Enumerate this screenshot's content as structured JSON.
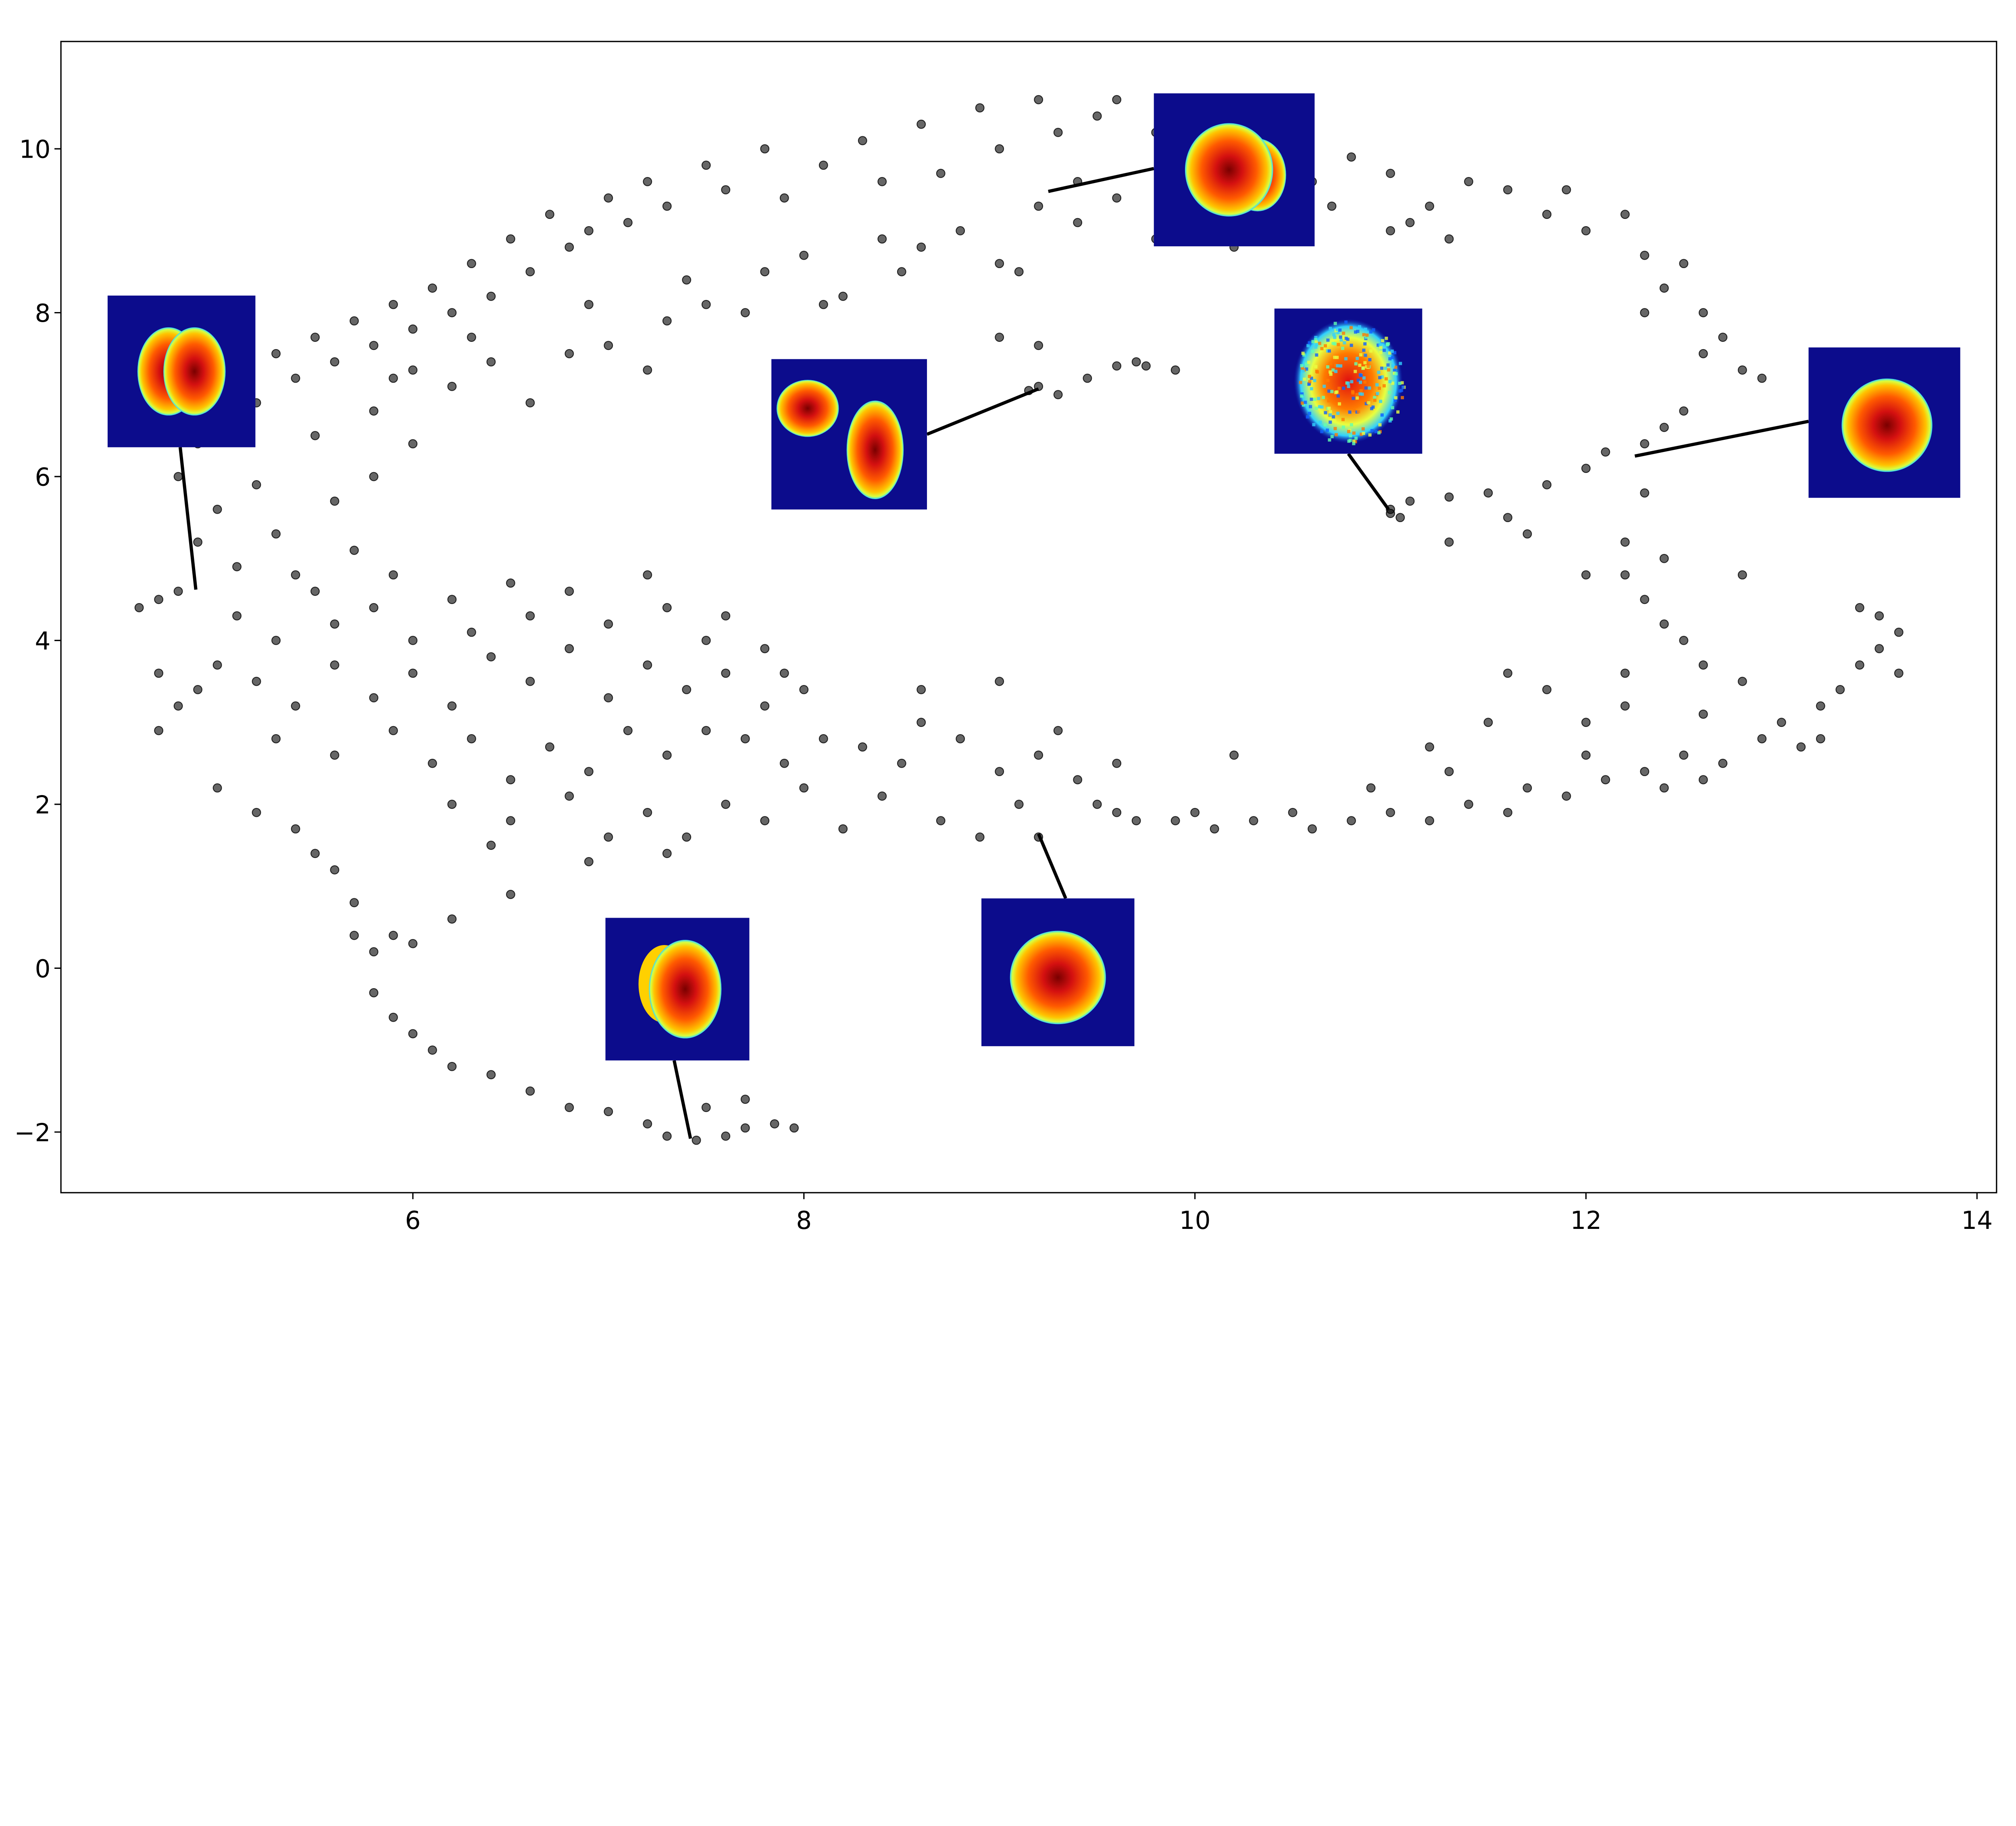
{
  "chart_data": {
    "type": "scatter",
    "title": "",
    "xlabel": "",
    "ylabel": "",
    "xlim": [
      4.2,
      14.1
    ],
    "ylim": [
      -2.74,
      11.31
    ],
    "grid": false,
    "legend": "none",
    "x_ticks": [
      {
        "value": 6,
        "label": "6"
      },
      {
        "value": 8,
        "label": "8"
      },
      {
        "value": 10,
        "label": "10"
      },
      {
        "value": 12,
        "label": "12"
      },
      {
        "value": 14,
        "label": "14"
      }
    ],
    "y_ticks": [
      {
        "value": -2,
        "label": "−2"
      },
      {
        "value": 0,
        "label": "0"
      },
      {
        "value": 2,
        "label": "2"
      },
      {
        "value": 4,
        "label": "4"
      },
      {
        "value": 6,
        "label": "6"
      },
      {
        "value": 8,
        "label": "8"
      },
      {
        "value": 10,
        "label": "10"
      }
    ],
    "marker_color": "#000000",
    "marker_alpha": 0.6,
    "inset_colormap": "jet",
    "annotations": [
      {
        "target": [
          4.89,
          4.62
        ],
        "image": "split-blob"
      },
      {
        "target": [
          9.2,
          7.07
        ],
        "image": "two-blobs"
      },
      {
        "target": [
          9.25,
          9.48
        ],
        "image": "double-blob"
      },
      {
        "target": [
          10.99,
          5.6
        ],
        "image": "noisy-blob"
      },
      {
        "target": [
          12.25,
          6.25
        ],
        "image": "oval-blob"
      },
      {
        "target": [
          9.2,
          1.64
        ],
        "image": "round-blob"
      },
      {
        "target": [
          7.42,
          -2.08
        ],
        "image": "crescent-blob"
      }
    ],
    "points": [
      [
        5.0,
        7.0
      ],
      [
        5.1,
        7.3
      ],
      [
        5.2,
        6.9
      ],
      [
        5.3,
        7.5
      ],
      [
        5.4,
        7.2
      ],
      [
        5.5,
        7.7
      ],
      [
        5.6,
        7.4
      ],
      [
        5.7,
        7.9
      ],
      [
        5.8,
        7.6
      ],
      [
        5.9,
        8.1
      ],
      [
        6.0,
        7.8
      ],
      [
        6.1,
        8.3
      ],
      [
        6.2,
        8.0
      ],
      [
        6.3,
        8.6
      ],
      [
        6.4,
        8.2
      ],
      [
        6.5,
        8.9
      ],
      [
        6.6,
        8.5
      ],
      [
        6.7,
        9.2
      ],
      [
        6.8,
        8.8
      ],
      [
        6.9,
        9.0
      ],
      [
        7.0,
        9.4
      ],
      [
        7.1,
        9.1
      ],
      [
        7.2,
        9.6
      ],
      [
        7.3,
        9.3
      ],
      [
        7.5,
        9.8
      ],
      [
        7.6,
        9.5
      ],
      [
        7.8,
        10.0
      ],
      [
        7.9,
        9.4
      ],
      [
        8.1,
        9.8
      ],
      [
        8.3,
        10.1
      ],
      [
        8.4,
        9.6
      ],
      [
        8.6,
        10.3
      ],
      [
        8.7,
        9.7
      ],
      [
        8.9,
        10.5
      ],
      [
        9.0,
        10.0
      ],
      [
        9.2,
        10.6
      ],
      [
        9.3,
        10.2
      ],
      [
        9.5,
        10.4
      ],
      [
        9.4,
        9.6
      ],
      [
        9.6,
        10.6
      ],
      [
        9.8,
        10.2
      ],
      [
        10.5,
        10.2
      ],
      [
        10.6,
        9.6
      ],
      [
        10.8,
        9.9
      ],
      [
        11.0,
        9.7
      ],
      [
        11.2,
        9.3
      ],
      [
        11.4,
        9.6
      ],
      [
        11.6,
        9.5
      ],
      [
        11.8,
        9.2
      ],
      [
        11.9,
        9.5
      ],
      [
        12.0,
        9.0
      ],
      [
        12.2,
        9.2
      ],
      [
        12.3,
        8.7
      ],
      [
        12.4,
        8.3
      ],
      [
        12.5,
        8.6
      ],
      [
        12.6,
        8.0
      ],
      [
        12.7,
        7.7
      ],
      [
        12.8,
        7.3
      ],
      [
        12.9,
        7.2
      ],
      [
        12.6,
        7.5
      ],
      [
        12.3,
        8.0
      ],
      [
        5.5,
        6.5
      ],
      [
        5.8,
        6.8
      ],
      [
        6.0,
        7.3
      ],
      [
        6.2,
        7.1
      ],
      [
        6.4,
        7.4
      ],
      [
        6.6,
        6.9
      ],
      [
        6.8,
        7.5
      ],
      [
        7.0,
        7.6
      ],
      [
        7.2,
        7.3
      ],
      [
        7.3,
        7.9
      ],
      [
        7.5,
        8.1
      ],
      [
        7.7,
        8.0
      ],
      [
        7.8,
        8.5
      ],
      [
        8.0,
        8.7
      ],
      [
        8.2,
        8.2
      ],
      [
        8.4,
        8.9
      ],
      [
        8.6,
        8.8
      ],
      [
        8.8,
        9.0
      ],
      [
        9.0,
        8.6
      ],
      [
        9.2,
        9.3
      ],
      [
        9.4,
        9.1
      ],
      [
        9.6,
        9.4
      ],
      [
        9.8,
        8.9
      ],
      [
        10.0,
        9.1
      ],
      [
        10.3,
        9.4
      ],
      [
        10.5,
        9.0
      ],
      [
        10.7,
        9.3
      ],
      [
        11.0,
        9.0
      ],
      [
        11.3,
        8.9
      ],
      [
        8.1,
        8.1
      ],
      [
        8.5,
        8.5
      ],
      [
        9.1,
        8.5
      ],
      [
        6.9,
        8.1
      ],
      [
        7.4,
        8.4
      ],
      [
        6.3,
        7.7
      ],
      [
        5.9,
        7.2
      ],
      [
        10.2,
        8.8
      ],
      [
        11.1,
        9.1
      ],
      [
        4.7,
        6.7
      ],
      [
        4.9,
        6.4
      ],
      [
        4.8,
        6.0
      ],
      [
        5.0,
        5.6
      ],
      [
        5.2,
        5.9
      ],
      [
        4.9,
        5.2
      ],
      [
        5.3,
        5.3
      ],
      [
        5.6,
        5.7
      ],
      [
        5.4,
        4.8
      ],
      [
        5.1,
        4.9
      ],
      [
        5.7,
        5.1
      ],
      [
        5.8,
        6.0
      ],
      [
        6.0,
        6.4
      ],
      [
        4.8,
        4.6
      ],
      [
        4.6,
        4.4
      ],
      [
        4.7,
        4.5
      ],
      [
        9.15,
        7.05
      ],
      [
        9.2,
        7.1
      ],
      [
        9.3,
        7.0
      ],
      [
        9.45,
        7.2
      ],
      [
        9.6,
        7.35
      ],
      [
        9.7,
        7.4
      ],
      [
        9.75,
        7.35
      ],
      [
        9.9,
        7.3
      ],
      [
        9.0,
        7.7
      ],
      [
        9.2,
        7.6
      ],
      [
        11.0,
        5.55
      ],
      [
        11.0,
        5.6
      ],
      [
        11.05,
        5.5
      ],
      [
        11.1,
        5.7
      ],
      [
        11.3,
        5.75
      ],
      [
        11.5,
        5.8
      ],
      [
        11.6,
        5.5
      ],
      [
        11.8,
        5.9
      ],
      [
        12.0,
        6.1
      ],
      [
        12.1,
        6.3
      ],
      [
        12.3,
        6.4
      ],
      [
        12.4,
        6.6
      ],
      [
        12.5,
        6.8
      ],
      [
        12.2,
        5.2
      ],
      [
        12.3,
        5.8
      ],
      [
        12.4,
        5.0
      ],
      [
        12.3,
        4.5
      ],
      [
        12.4,
        4.2
      ],
      [
        12.2,
        4.8
      ],
      [
        12.5,
        4.0
      ],
      [
        12.6,
        3.7
      ],
      [
        12.2,
        3.6
      ],
      [
        12.0,
        4.8
      ],
      [
        12.8,
        4.8
      ],
      [
        11.3,
        5.2
      ],
      [
        11.7,
        5.3
      ],
      [
        13.4,
        4.4
      ],
      [
        13.5,
        4.3
      ],
      [
        13.6,
        4.1
      ],
      [
        13.5,
        3.9
      ],
      [
        13.4,
        3.7
      ],
      [
        13.3,
        3.4
      ],
      [
        13.6,
        3.6
      ],
      [
        13.2,
        3.2
      ],
      [
        13.0,
        3.0
      ],
      [
        13.1,
        2.7
      ],
      [
        12.9,
        2.8
      ],
      [
        12.7,
        2.5
      ],
      [
        12.6,
        2.3
      ],
      [
        12.5,
        2.6
      ],
      [
        12.3,
        2.4
      ],
      [
        12.4,
        2.2
      ],
      [
        12.1,
        2.3
      ],
      [
        12.0,
        2.6
      ],
      [
        11.9,
        2.1
      ],
      [
        11.7,
        2.2
      ],
      [
        11.6,
        1.9
      ],
      [
        11.4,
        2.0
      ],
      [
        11.3,
        2.4
      ],
      [
        11.2,
        1.8
      ],
      [
        11.0,
        1.9
      ],
      [
        10.9,
        2.2
      ],
      [
        10.8,
        1.8
      ],
      [
        10.6,
        1.7
      ],
      [
        10.5,
        1.9
      ],
      [
        10.3,
        1.8
      ],
      [
        10.1,
        1.7
      ],
      [
        10.0,
        1.9
      ],
      [
        9.9,
        1.8
      ],
      [
        9.7,
        1.8
      ],
      [
        9.6,
        1.9
      ],
      [
        12.0,
        3.0
      ],
      [
        12.2,
        3.2
      ],
      [
        11.8,
        3.4
      ],
      [
        11.5,
        3.0
      ],
      [
        11.2,
        2.7
      ],
      [
        12.6,
        3.1
      ],
      [
        12.8,
        3.5
      ],
      [
        13.2,
        2.8
      ],
      [
        10.2,
        2.6
      ],
      [
        11.6,
        3.6
      ],
      [
        4.7,
        3.6
      ],
      [
        4.8,
        3.2
      ],
      [
        4.7,
        2.9
      ],
      [
        4.9,
        3.4
      ],
      [
        5.0,
        3.7
      ],
      [
        5.1,
        4.3
      ],
      [
        5.3,
        4.0
      ],
      [
        5.5,
        4.6
      ],
      [
        5.6,
        4.2
      ],
      [
        5.8,
        4.4
      ],
      [
        5.9,
        4.8
      ],
      [
        6.0,
        4.0
      ],
      [
        6.2,
        4.5
      ],
      [
        6.3,
        4.1
      ],
      [
        6.5,
        4.7
      ],
      [
        6.6,
        4.3
      ],
      [
        6.8,
        4.6
      ],
      [
        7.0,
        4.2
      ],
      [
        7.2,
        4.8
      ],
      [
        7.3,
        4.4
      ],
      [
        7.5,
        4.0
      ],
      [
        7.6,
        4.3
      ],
      [
        7.8,
        3.9
      ],
      [
        7.9,
        3.6
      ],
      [
        5.2,
        3.5
      ],
      [
        5.4,
        3.2
      ],
      [
        5.6,
        3.7
      ],
      [
        5.8,
        3.3
      ],
      [
        6.0,
        3.6
      ],
      [
        6.2,
        3.2
      ],
      [
        6.4,
        3.8
      ],
      [
        6.6,
        3.5
      ],
      [
        6.8,
        3.9
      ],
      [
        7.0,
        3.3
      ],
      [
        7.2,
        3.7
      ],
      [
        7.4,
        3.4
      ],
      [
        7.6,
        3.6
      ],
      [
        7.8,
        3.2
      ],
      [
        8.0,
        3.4
      ],
      [
        5.3,
        2.8
      ],
      [
        5.6,
        2.6
      ],
      [
        5.9,
        2.9
      ],
      [
        6.1,
        2.5
      ],
      [
        6.3,
        2.8
      ],
      [
        6.5,
        2.3
      ],
      [
        6.7,
        2.7
      ],
      [
        6.9,
        2.4
      ],
      [
        7.1,
        2.9
      ],
      [
        7.3,
        2.6
      ],
      [
        7.5,
        2.9
      ],
      [
        7.7,
        2.8
      ],
      [
        7.9,
        2.5
      ],
      [
        8.1,
        2.8
      ],
      [
        6.2,
        2.0
      ],
      [
        6.5,
        1.8
      ],
      [
        6.8,
        2.1
      ],
      [
        7.0,
        1.6
      ],
      [
        7.2,
        1.9
      ],
      [
        7.4,
        1.6
      ],
      [
        7.6,
        2.0
      ],
      [
        7.8,
        1.8
      ],
      [
        6.4,
        1.5
      ],
      [
        6.9,
        1.3
      ],
      [
        7.3,
        1.4
      ],
      [
        8.3,
        2.7
      ],
      [
        8.5,
        2.5
      ],
      [
        8.6,
        3.0
      ],
      [
        8.8,
        2.8
      ],
      [
        9.0,
        2.4
      ],
      [
        9.1,
        2.0
      ],
      [
        9.2,
        2.6
      ],
      [
        9.3,
        2.9
      ],
      [
        9.4,
        2.3
      ],
      [
        9.5,
        2.0
      ],
      [
        8.7,
        1.8
      ],
      [
        8.9,
        1.6
      ],
      [
        9.2,
        1.6
      ],
      [
        8.4,
        2.1
      ],
      [
        8.0,
        2.2
      ],
      [
        8.2,
        1.7
      ],
      [
        9.6,
        2.5
      ],
      [
        8.6,
        3.4
      ],
      [
        9.0,
        3.5
      ],
      [
        5.0,
        2.2
      ],
      [
        5.2,
        1.9
      ],
      [
        5.4,
        1.7
      ],
      [
        5.5,
        1.4
      ],
      [
        5.6,
        1.2
      ],
      [
        5.7,
        0.8
      ],
      [
        5.7,
        0.4
      ],
      [
        5.8,
        0.2
      ],
      [
        5.9,
        0.4
      ],
      [
        5.8,
        -0.3
      ],
      [
        5.9,
        -0.6
      ],
      [
        6.0,
        -0.8
      ],
      [
        6.1,
        -1.0
      ],
      [
        6.2,
        -1.2
      ],
      [
        6.4,
        -1.3
      ],
      [
        6.6,
        -1.5
      ],
      [
        6.8,
        -1.7
      ],
      [
        7.0,
        -1.75
      ],
      [
        7.2,
        -1.9
      ],
      [
        7.3,
        -2.05
      ],
      [
        7.45,
        -2.1
      ],
      [
        7.6,
        -2.05
      ],
      [
        7.7,
        -1.95
      ],
      [
        7.85,
        -1.9
      ],
      [
        7.95,
        -1.95
      ],
      [
        7.7,
        -1.6
      ],
      [
        7.5,
        -1.7
      ],
      [
        6.2,
        0.6
      ],
      [
        6.5,
        0.9
      ],
      [
        6.0,
        0.3
      ]
    ]
  }
}
